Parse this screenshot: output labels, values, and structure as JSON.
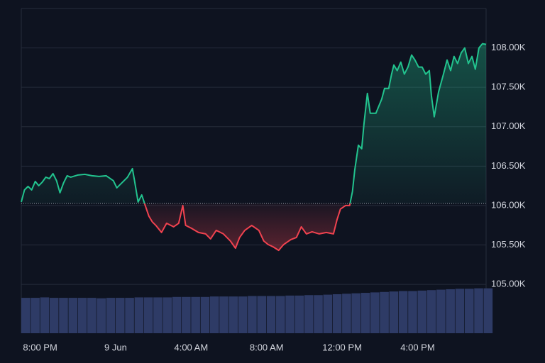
{
  "chart_data": {
    "type": "line",
    "x": [
      -1.0,
      -0.83,
      -0.64,
      -0.45,
      -0.26,
      -0.08,
      0.11,
      0.3,
      0.49,
      0.68,
      0.87,
      1.05,
      1.24,
      1.43,
      1.62,
      1.99,
      2.37,
      2.75,
      3.12,
      3.5,
      3.88,
      4.06,
      4.44,
      4.63,
      4.89,
      5.0,
      5.19,
      5.38,
      5.57,
      5.76,
      5.94,
      6.13,
      6.43,
      6.7,
      7.07,
      7.34,
      7.56,
      7.71,
      8.01,
      8.39,
      8.77,
      9.03,
      9.33,
      9.71,
      10.08,
      10.35,
      10.57,
      10.84,
      11.21,
      11.59,
      11.85,
      12.08,
      12.34,
      12.64,
      12.9,
      13.28,
      13.58,
      13.84,
      14.11,
      14.41,
      14.79,
      15.16,
      15.54,
      15.73,
      15.91,
      16.18,
      16.4,
      16.55,
      16.67,
      16.86,
      17.04,
      17.16,
      17.34,
      17.49,
      17.79,
      18.1,
      18.25,
      18.47,
      18.62,
      18.74,
      18.92,
      19.11,
      19.3,
      19.49,
      19.68,
      19.86,
      20.05,
      20.24,
      20.43,
      20.62,
      20.73,
      20.88,
      21.11,
      21.37,
      21.56,
      21.75,
      21.93,
      22.12,
      22.31,
      22.5,
      22.69,
      22.88,
      23.06,
      23.25,
      23.44,
      23.63
    ],
    "values": [
      106045,
      106198,
      106243,
      106198,
      106306,
      106252,
      106297,
      106360,
      106342,
      106405,
      106315,
      106162,
      106288,
      106378,
      106360,
      106387,
      106396,
      106378,
      106369,
      106378,
      106315,
      106225,
      106315,
      106360,
      106468,
      106315,
      106045,
      106135,
      106000,
      105865,
      105793,
      105748,
      105658,
      105775,
      105730,
      105775,
      106000,
      105748,
      105712,
      105658,
      105640,
      105577,
      105685,
      105640,
      105550,
      105459,
      105595,
      105685,
      105748,
      105685,
      105550,
      105505,
      105477,
      105432,
      105505,
      105568,
      105595,
      105730,
      105640,
      105667,
      105640,
      105658,
      105640,
      105820,
      105955,
      106000,
      106000,
      106180,
      106450,
      106766,
      106721,
      107036,
      107423,
      107171,
      107171,
      107351,
      107486,
      107486,
      107667,
      107784,
      107712,
      107820,
      107667,
      107757,
      107910,
      107847,
      107757,
      107757,
      107667,
      107712,
      107396,
      107126,
      107441,
      107667,
      107847,
      107712,
      107892,
      107802,
      107937,
      108000,
      107802,
      107892,
      107730,
      108000,
      108054,
      108045
    ],
    "baseline": 106027,
    "up_color": "#22c38e",
    "down_color": "#f0424f",
    "xlim": [
      -1.0,
      23.63
    ],
    "xticks": [
      {
        "value": 0,
        "label": "8:00 PM"
      },
      {
        "value": 4,
        "label": "9 Jun"
      },
      {
        "value": 8,
        "label": "4:00 AM"
      },
      {
        "value": 12,
        "label": "8:00 AM"
      },
      {
        "value": 16,
        "label": "12:00 PM"
      },
      {
        "value": 20,
        "label": "4:00 PM"
      }
    ],
    "ylim": [
      104380,
      108500
    ],
    "yticks": [
      {
        "value": 105000,
        "label": "105.00K"
      },
      {
        "value": 105500,
        "label": "105.50K"
      },
      {
        "value": 106000,
        "label": "106.00K"
      },
      {
        "value": 106500,
        "label": "106.50K"
      },
      {
        "value": 107000,
        "label": "107.00K"
      },
      {
        "value": 107500,
        "label": "107.50K"
      },
      {
        "value": 108000,
        "label": "108.00K"
      }
    ],
    "grid": true,
    "volume": {
      "color": "#2e3b66",
      "lim": [
        0,
        100
      ],
      "x": [
        -1.0,
        -0.5,
        0,
        0.5,
        1,
        1.5,
        2,
        2.5,
        3,
        3.5,
        4,
        4.5,
        5,
        5.5,
        6,
        6.5,
        7,
        7.5,
        8,
        8.5,
        9,
        9.5,
        10,
        10.5,
        11,
        11.5,
        12,
        12.5,
        13,
        13.5,
        14,
        14.5,
        15,
        15.5,
        16,
        16.5,
        17,
        17.5,
        18,
        18.5,
        19,
        19.5,
        20,
        20.5,
        21,
        21.5,
        22,
        22.5,
        23,
        23.5
      ],
      "values": [
        78,
        78,
        79,
        78,
        78,
        78,
        78,
        78,
        77,
        78,
        78,
        78,
        79,
        79,
        79,
        79,
        80,
        80,
        80,
        80,
        81,
        81,
        81,
        81,
        82,
        82,
        82,
        82,
        83,
        83,
        84,
        84,
        85,
        86,
        87,
        88,
        89,
        90,
        91,
        92,
        93,
        93,
        94,
        95,
        96,
        97,
        98,
        98,
        99,
        99
      ]
    }
  }
}
